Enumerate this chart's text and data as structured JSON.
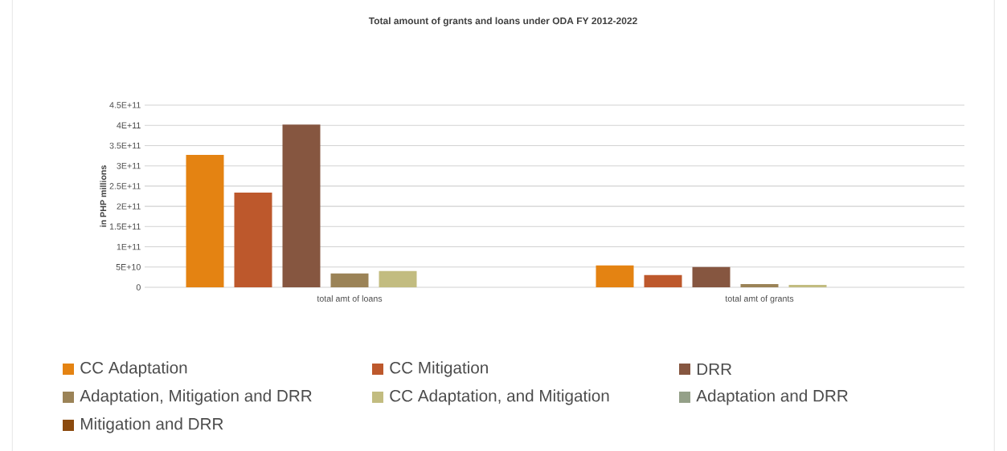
{
  "chart_data": {
    "type": "bar",
    "title": "Total amount of grants and loans under ODA FY 2012-2022",
    "ylabel": "in PHP millions",
    "categories": [
      "total amt of loans",
      "total amt of grants"
    ],
    "series": [
      {
        "name": "CC Adaptation",
        "color": "#e48312",
        "values": [
          327000000000,
          54000000000
        ]
      },
      {
        "name": "CC Mitigation",
        "color": "#bd582c",
        "values": [
          234000000000,
          30000000000
        ]
      },
      {
        "name": "DRR",
        "color": "#865640",
        "values": [
          402000000000,
          50000000000
        ]
      },
      {
        "name": "Adaptation, Mitigation and DRR",
        "color": "#9b8357",
        "values": [
          34000000000,
          8000000000
        ]
      },
      {
        "name": "CC Adaptation, and Mitigation",
        "color": "#c2bc80",
        "values": [
          40000000000,
          6000000000
        ]
      },
      {
        "name": "Adaptation and DRR",
        "color": "#94a088",
        "values": [
          0,
          0
        ]
      },
      {
        "name": "Mitigation and DRR",
        "color": "#8b4a0e",
        "values": [
          0,
          0
        ]
      }
    ],
    "ylim": [
      0,
      450000000000
    ],
    "yticks": [
      0,
      {
        "value": 50000000000,
        "label": "5E+10"
      },
      {
        "value": 100000000000,
        "label": "1E+11"
      },
      {
        "value": 150000000000,
        "label": "1.5E+11"
      },
      {
        "value": 200000000000,
        "label": "2E+11"
      },
      {
        "value": 250000000000,
        "label": "2.5E+11"
      },
      {
        "value": 300000000000,
        "label": "3E+11"
      },
      {
        "value": 350000000000,
        "label": "3.5E+11"
      },
      {
        "value": 400000000000,
        "label": "4E+11"
      },
      {
        "value": 450000000000,
        "label": "4.5E+11"
      }
    ],
    "grid": "y",
    "legend": "bottom"
  }
}
